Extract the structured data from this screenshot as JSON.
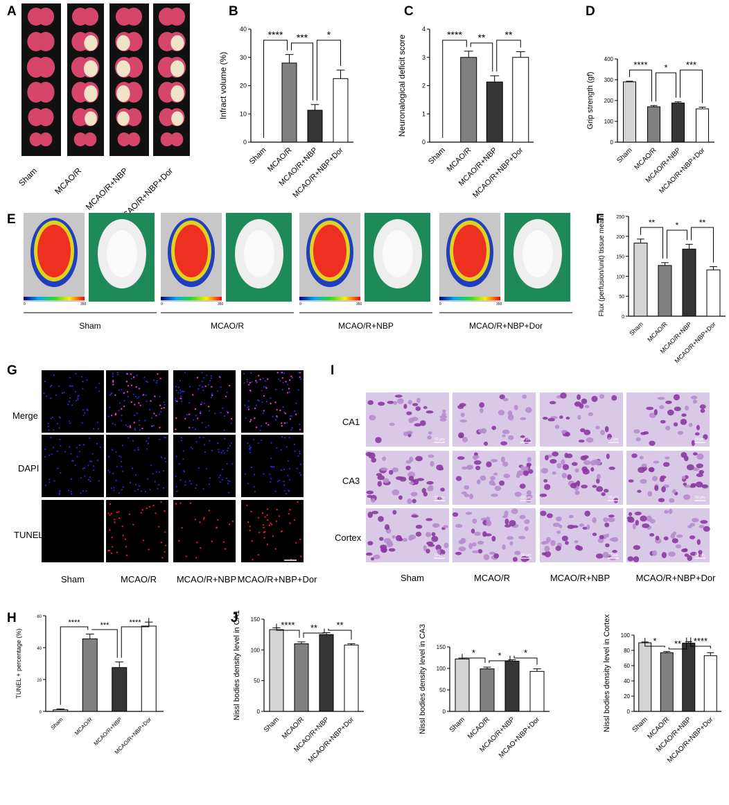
{
  "panels": {
    "A": {
      "letter": "A",
      "groups": [
        "Sham",
        "MCAO/R",
        "MCAO/R+NBP",
        "MCAO/R+NBP+Dor"
      ]
    },
    "E": {
      "letter": "E",
      "groups": [
        "Sham",
        "MCAO/R",
        "MCAO/R+NBP",
        "MCAO/R+NBP+Dor"
      ],
      "scale_min": "0",
      "scale_max": "350"
    },
    "G": {
      "letter": "G",
      "rows": [
        "Merge",
        "DAPI",
        "TUNEL"
      ],
      "groups": [
        "Sham",
        "MCAO/R",
        "MCAO/R+NBP",
        "MCAO/R+NBP+Dor"
      ]
    },
    "I": {
      "letter": "I",
      "rows": [
        "CA1",
        "CA3",
        "Cortex"
      ],
      "groups": [
        "Sham",
        "MCAO/R",
        "MCAO/R+NBP",
        "MCAO/R+NBP+Dor"
      ],
      "scalebar": "50 μm"
    }
  },
  "colors": {
    "sham": "#d4d4d4",
    "mcao": "#808080",
    "nbp": "#353535",
    "dor": "#ffffff",
    "stain_bg": "#d9c8e6",
    "cell": "#8a3a9e",
    "green_bg": "#1e8a5a",
    "gray_bg": "#c7c7c7"
  },
  "chart_data": [
    {
      "id": "B",
      "letter": "B",
      "type": "bar",
      "categories": [
        "Sham",
        "MCAO/R",
        "MCAO/R+NBP",
        "MCAO/R+NBP+Dor"
      ],
      "values": [
        0,
        28,
        11.3,
        22.5
      ],
      "errors": [
        0,
        3,
        2,
        3
      ],
      "ylabel": "Infract volume (%)",
      "ylim": [
        0,
        40
      ],
      "yticks": [
        0,
        10,
        20,
        30,
        40
      ],
      "sig": [
        [
          "****",
          0,
          1
        ],
        [
          "***",
          1,
          2
        ],
        [
          "*",
          2,
          3
        ]
      ]
    },
    {
      "id": "C",
      "letter": "C",
      "type": "bar",
      "categories": [
        "Sham",
        "MCAO/R",
        "MCAO/R+NBP",
        "MCAO/R+NBP+Dor"
      ],
      "values": [
        0,
        3.0,
        2.13,
        3.0
      ],
      "errors": [
        0,
        0.22,
        0.22,
        0.2
      ],
      "ylabel": "Neuronalogical deficit score",
      "ylim": [
        0,
        4
      ],
      "yticks": [
        0,
        1,
        2,
        3,
        4
      ],
      "sig": [
        [
          "****",
          0,
          1
        ],
        [
          "**",
          1,
          2
        ],
        [
          "**",
          2,
          3
        ]
      ]
    },
    {
      "id": "D",
      "letter": "D",
      "type": "bar",
      "categories": [
        "Sham",
        "MCAO/R",
        "MCAO/R+NBP",
        "MCAO/R+NBP+Dor"
      ],
      "values": [
        290,
        170,
        188,
        160
      ],
      "errors": [
        3,
        6,
        6,
        8
      ],
      "ylabel": "Grip  strength (gf)",
      "ylim": [
        0,
        400
      ],
      "yticks": [
        0,
        100,
        200,
        300,
        400
      ],
      "sig": [
        [
          "****",
          0,
          1
        ],
        [
          "*",
          1,
          2
        ],
        [
          "***",
          2,
          3
        ]
      ]
    },
    {
      "id": "F",
      "letter": "F",
      "type": "bar",
      "categories": [
        "Sham",
        "MCAO/R",
        "MCAO/R+NBP",
        "MCAO/R+NBP+Dor"
      ],
      "values": [
        183,
        127,
        168,
        116
      ],
      "errors": [
        10,
        7,
        12,
        8
      ],
      "ylabel": "Flux (perfusion/unit) tissue mean",
      "ylim": [
        0,
        250
      ],
      "yticks": [
        0,
        50,
        100,
        150,
        200,
        250
      ],
      "sig": [
        [
          "**",
          0,
          1
        ],
        [
          "*",
          1,
          2
        ],
        [
          "**",
          2,
          3
        ]
      ]
    },
    {
      "id": "H",
      "letter": "H",
      "type": "bar",
      "categories": [
        "Sham",
        "MCAO/R",
        "MCAO/R+NBP",
        "MCAO/R+NBP+Dor"
      ],
      "values": [
        1,
        45.5,
        27.5,
        53.5
      ],
      "errors": [
        0.5,
        3,
        3.5,
        2.5
      ],
      "ylabel": "TUNEL + percentage (%)",
      "ylim": [
        0,
        60
      ],
      "yticks": [
        0,
        20,
        40,
        60
      ],
      "sig": [
        [
          "****",
          0,
          1
        ],
        [
          "***",
          1,
          2
        ],
        [
          "****",
          2,
          3
        ]
      ]
    },
    {
      "id": "J1",
      "letter": "J",
      "type": "bar",
      "categories": [
        "Sham",
        "MCAO/R",
        "MCAO/R+NBP",
        "MCAO/R+NBP+Dor"
      ],
      "values": [
        133,
        110,
        125,
        108
      ],
      "errors": [
        3,
        3,
        3,
        2
      ],
      "ylabel": "Nissl bodies density level in CA1",
      "ylim": [
        0,
        150
      ],
      "yticks": [
        0,
        50,
        100,
        150
      ],
      "sig": [
        [
          "****",
          0,
          1
        ],
        [
          "**",
          1,
          2
        ],
        [
          "**",
          2,
          3
        ]
      ]
    },
    {
      "id": "J2",
      "letter": "",
      "type": "bar",
      "categories": [
        "Sham",
        "MCAO/R",
        "MCAO/R+NBP",
        "MCAO+NBP+Dor"
      ],
      "values": [
        122,
        99,
        117,
        93
      ],
      "errors": [
        2,
        4,
        3,
        6
      ],
      "ylabel": "Nissl bodies density level in CA3",
      "ylim": [
        0,
        150
      ],
      "yticks": [
        0,
        50,
        100,
        150
      ],
      "sig": [
        [
          "*",
          0,
          1
        ],
        [
          "*",
          1,
          2
        ],
        [
          "*",
          2,
          3
        ]
      ]
    },
    {
      "id": "J3",
      "letter": "",
      "type": "bar",
      "categories": [
        "Sham",
        "MCAO/R",
        "MCAO/R+NBP",
        "MCAO/R+NBP+Dor"
      ],
      "values": [
        90,
        77,
        89.5,
        73
      ],
      "errors": [
        1,
        1.5,
        2,
        4
      ],
      "ylabel": "Nissl bodies density level in Cortex",
      "ylim": [
        0,
        100
      ],
      "yticks": [
        0,
        20,
        40,
        60,
        80,
        100
      ],
      "sig": [
        [
          "*",
          0,
          1
        ],
        [
          "**",
          1,
          2
        ],
        [
          "****",
          2,
          3
        ]
      ]
    }
  ]
}
